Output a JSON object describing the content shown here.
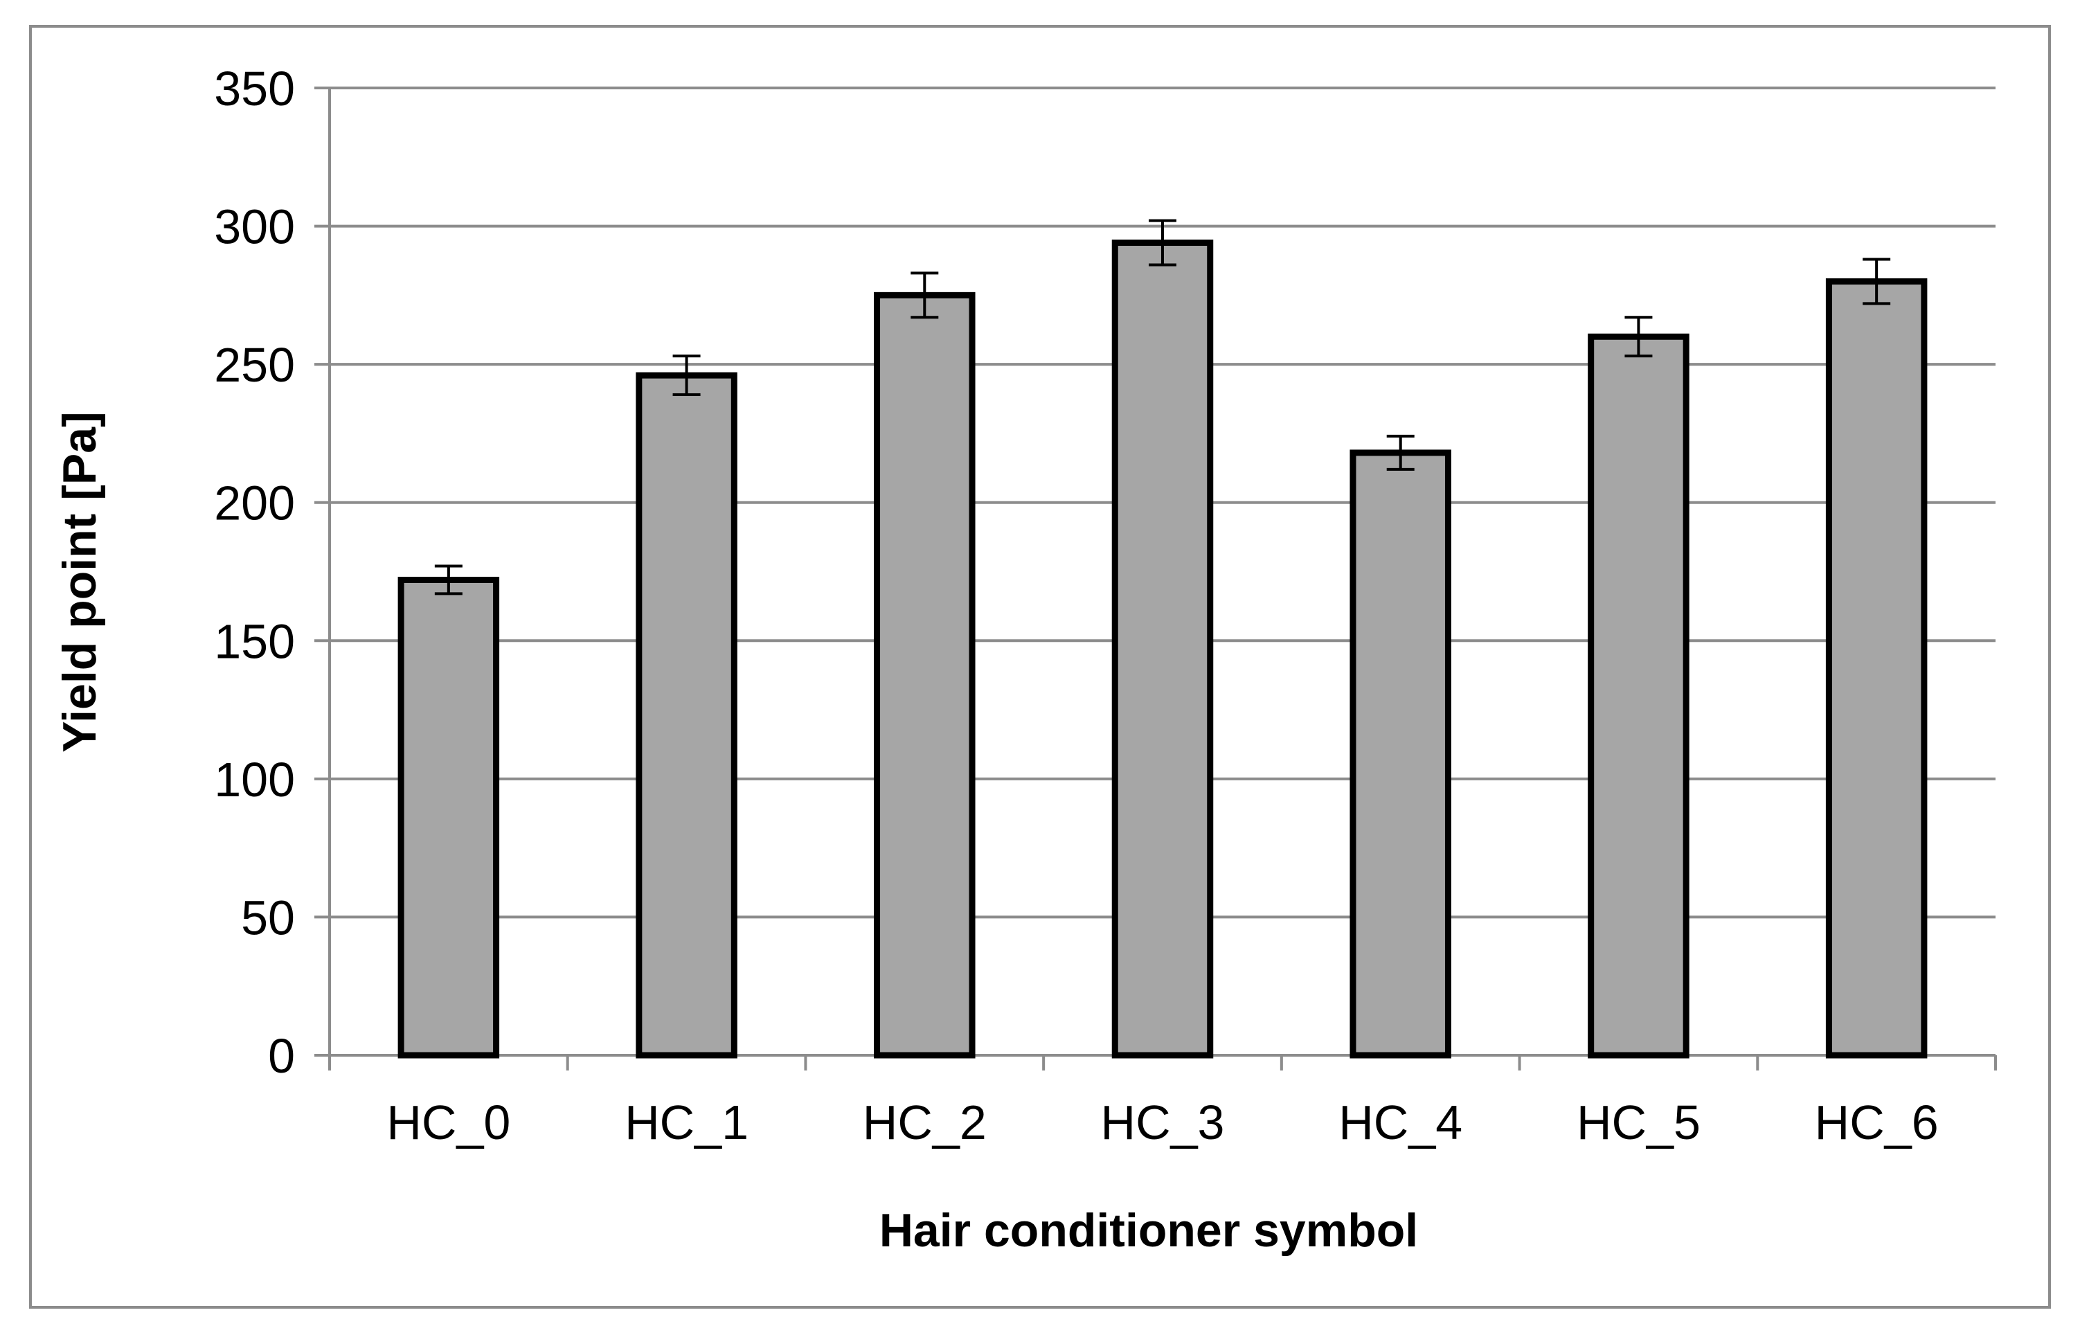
{
  "chart_data": {
    "type": "bar",
    "title": "",
    "xlabel": "Hair conditioner symbol",
    "ylabel": "Yield point [Pa]",
    "categories": [
      "HC_0",
      "HC_1",
      "HC_2",
      "HC_3",
      "HC_4",
      "HC_5",
      "HC_6"
    ],
    "values": [
      172,
      246,
      275,
      294,
      218,
      260,
      280
    ],
    "error": [
      5,
      7,
      8,
      8,
      6,
      7,
      8
    ],
    "ylim": [
      0,
      350
    ],
    "yticks": [
      0,
      50,
      100,
      150,
      200,
      250,
      300,
      350
    ],
    "grid": true,
    "legend": "none",
    "colors": {
      "bar_fill": "#a6a6a6",
      "bar_edge": "#000000",
      "grid": "#8c8c8c"
    }
  }
}
